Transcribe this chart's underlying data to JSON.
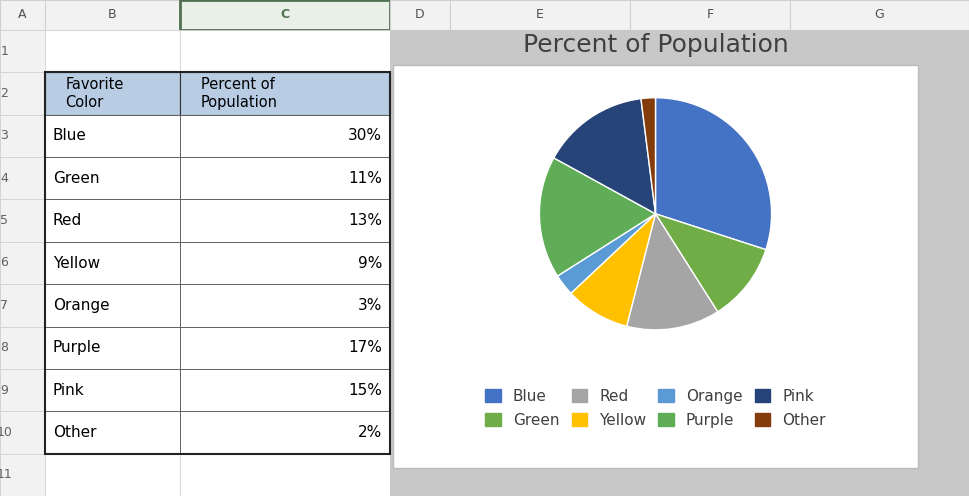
{
  "title": "Percent of Population",
  "labels": [
    "Blue",
    "Green",
    "Red",
    "Yellow",
    "Orange",
    "Purple",
    "Pink",
    "Other"
  ],
  "values": [
    30,
    11,
    13,
    9,
    3,
    17,
    15,
    2
  ],
  "pie_colors": [
    "#4472C4",
    "#70AD47",
    "#A5A5A5",
    "#FFC000",
    "#5B9BD5",
    "#70AD47",
    "#264478",
    "#843C0C"
  ],
  "pie_colors_correct": [
    "#4472C4",
    "#70AD47",
    "#9E9E9E",
    "#FFC000",
    "#5BA3C9",
    "#5FAD56",
    "#1F3864",
    "#843C0C"
  ],
  "title_fontsize": 18,
  "legend_fontsize": 11,
  "bg_color": "#C8C8C8",
  "chart_bg": "#FFFFFF",
  "startangle": 90,
  "table_header_color": "#B8CCE4",
  "table_rows": [
    [
      "Blue",
      "30%"
    ],
    [
      "Green",
      "11%"
    ],
    [
      "Red",
      "13%"
    ],
    [
      "Yellow",
      "9%"
    ],
    [
      "Orange",
      "3%"
    ],
    [
      "Purple",
      "17%"
    ],
    [
      "Pink",
      "15%"
    ],
    [
      "Other",
      "2%"
    ]
  ],
  "col_labels": [
    "A",
    "B",
    "C",
    "D",
    "E",
    "F",
    "G"
  ],
  "excel_col_header_bg": "#F2F2F2",
  "excel_col_header_active_bg": "#E8F0E8",
  "excel_col_header_active_border": "#507050",
  "excel_row_header_bg": "#F2F2F2",
  "excel_grid_color": "#D0D0D0",
  "excel_bg": "#C8C8C8"
}
